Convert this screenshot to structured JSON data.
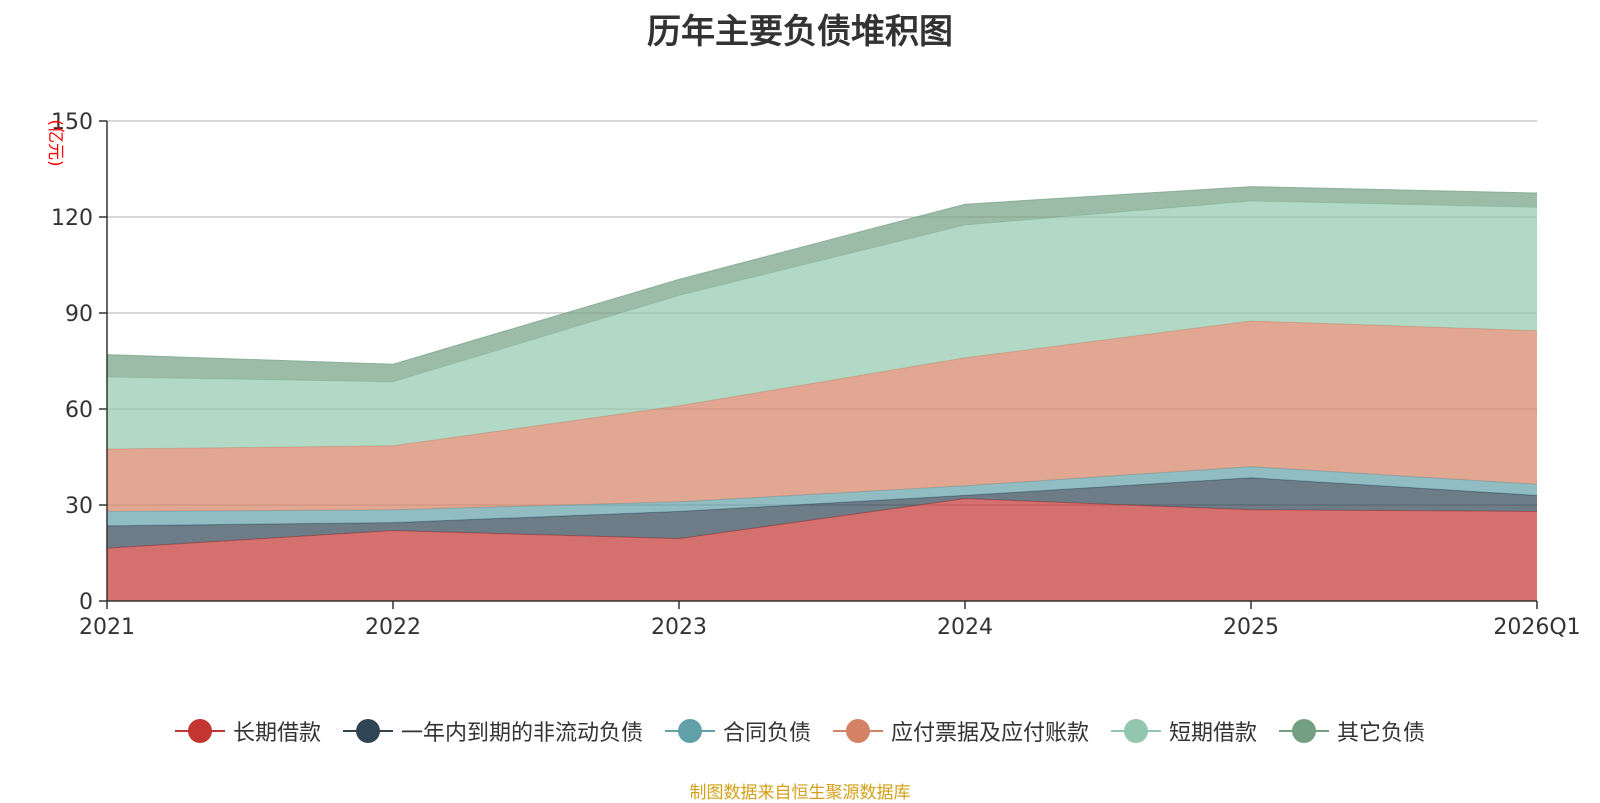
{
  "chart_data": {
    "type": "area",
    "stacked": true,
    "title": "历年主要负债堆积图",
    "unit_label": "(亿元)",
    "categories": [
      "2021",
      "2022",
      "2023",
      "2024",
      "2025",
      "2026Q1"
    ],
    "ylim": [
      0,
      150
    ],
    "yticks": [
      0,
      30,
      60,
      90,
      120,
      150
    ],
    "grid": true,
    "legend_position": "bottom",
    "series": [
      {
        "name": "长期借款",
        "color": "#c23531",
        "values": [
          16.5,
          22,
          19.5,
          32,
          28.5,
          28
        ]
      },
      {
        "name": "一年内到期的非流动负债",
        "color": "#2f4554",
        "values": [
          7,
          2.5,
          8.5,
          1,
          10,
          5
        ]
      },
      {
        "name": "合同负债",
        "color": "#61a0a8",
        "values": [
          4.5,
          4,
          3,
          3,
          3.5,
          3.5
        ]
      },
      {
        "name": "应付票据及应付账款",
        "color": "#d48265",
        "values": [
          19.5,
          20,
          30,
          40,
          45.5,
          48
        ]
      },
      {
        "name": "短期借款",
        "color": "#91c7ae",
        "values": [
          22.5,
          20,
          34.5,
          41.5,
          37.5,
          38.5
        ]
      },
      {
        "name": "其它负债",
        "color": "#749f83",
        "values": [
          7,
          5.5,
          5,
          6.5,
          4.5,
          4.5
        ]
      }
    ]
  },
  "source_note": "制图数据来自恒生聚源数据库"
}
